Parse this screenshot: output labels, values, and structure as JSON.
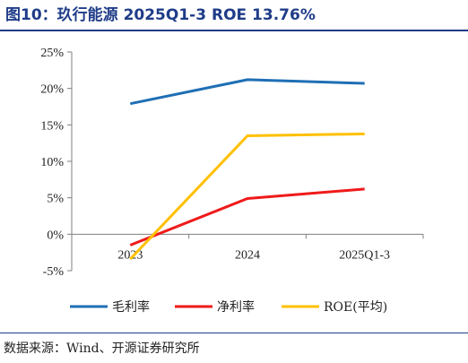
{
  "title": "图10：玖行能源 2025Q1-3 ROE 13.76%",
  "source": "数据来源：Wind、开源证券研究所",
  "chart_data": {
    "type": "line",
    "categories": [
      "2023",
      "2024",
      "2025Q1-3"
    ],
    "y_ticks": [
      "25%",
      "20%",
      "15%",
      "10%",
      "5%",
      "0%",
      "-5%"
    ],
    "y_tick_values": [
      25,
      20,
      15,
      10,
      5,
      0,
      -5
    ],
    "ylim": [
      -5,
      25
    ],
    "grid": false,
    "legend_position": "bottom",
    "series": [
      {
        "name": "毛利率",
        "values": [
          17.9,
          21.2,
          20.7
        ],
        "color": "#1f6fb5"
      },
      {
        "name": "净利率",
        "values": [
          -1.5,
          4.9,
          6.2
        ],
        "color": "#ef1a1a"
      },
      {
        "name": "ROE(平均)",
        "values": [
          -3.4,
          13.5,
          13.76
        ],
        "color": "#ffc000"
      }
    ]
  }
}
